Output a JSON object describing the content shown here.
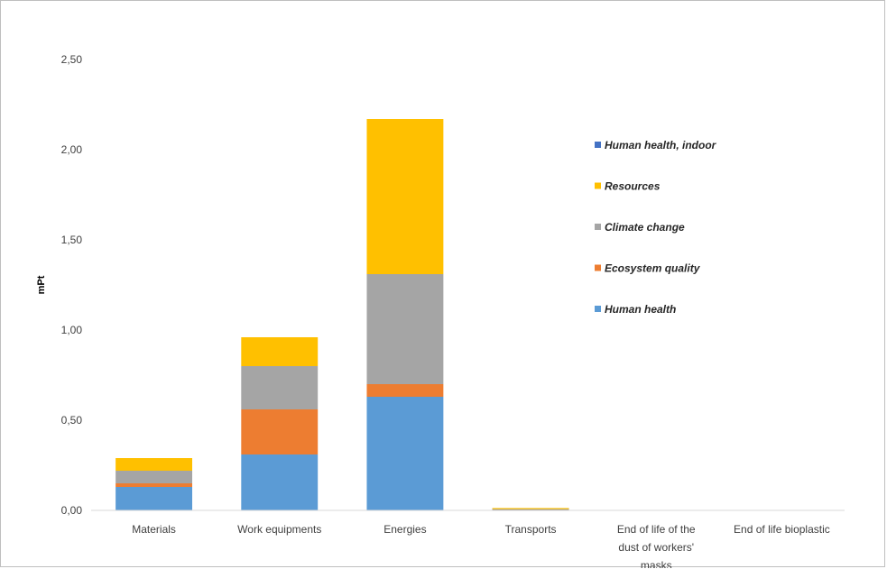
{
  "chart_data": {
    "type": "bar",
    "stacked": true,
    "title": "",
    "xlabel": "",
    "ylabel": "mPt",
    "ylim": [
      0,
      2.5
    ],
    "yticks": [
      "0,00",
      "0,50",
      "1,00",
      "1,50",
      "2,00",
      "2,50"
    ],
    "grid": false,
    "legend_position": "right",
    "categories": [
      [
        "Materials"
      ],
      [
        "Work equipments"
      ],
      [
        "Energies"
      ],
      [
        "Transports"
      ],
      [
        "End of life of the",
        "dust of workers'",
        "masks"
      ],
      [
        "End of life bioplastic"
      ]
    ],
    "series": [
      {
        "name": "Human health",
        "color": "#5b9bd5",
        "values": [
          0.13,
          0.31,
          0.63,
          0.004,
          0,
          0
        ]
      },
      {
        "name": "Ecosystem quality",
        "color": "#ed7d31",
        "values": [
          0.02,
          0.25,
          0.07,
          0.001,
          0,
          0
        ]
      },
      {
        "name": "Climate change",
        "color": "#a5a5a5",
        "values": [
          0.07,
          0.24,
          0.61,
          0.002,
          0,
          0
        ]
      },
      {
        "name": "Resources",
        "color": "#ffc000",
        "values": [
          0.07,
          0.16,
          0.86,
          0.003,
          0,
          0
        ]
      },
      {
        "name": "Human health, indoor",
        "color": "#4472c4",
        "values": [
          0,
          0,
          0,
          0,
          0,
          0
        ]
      }
    ],
    "legend_order": [
      "Human health, indoor",
      "Resources",
      "Climate change",
      "Ecosystem quality",
      "Human health"
    ]
  }
}
